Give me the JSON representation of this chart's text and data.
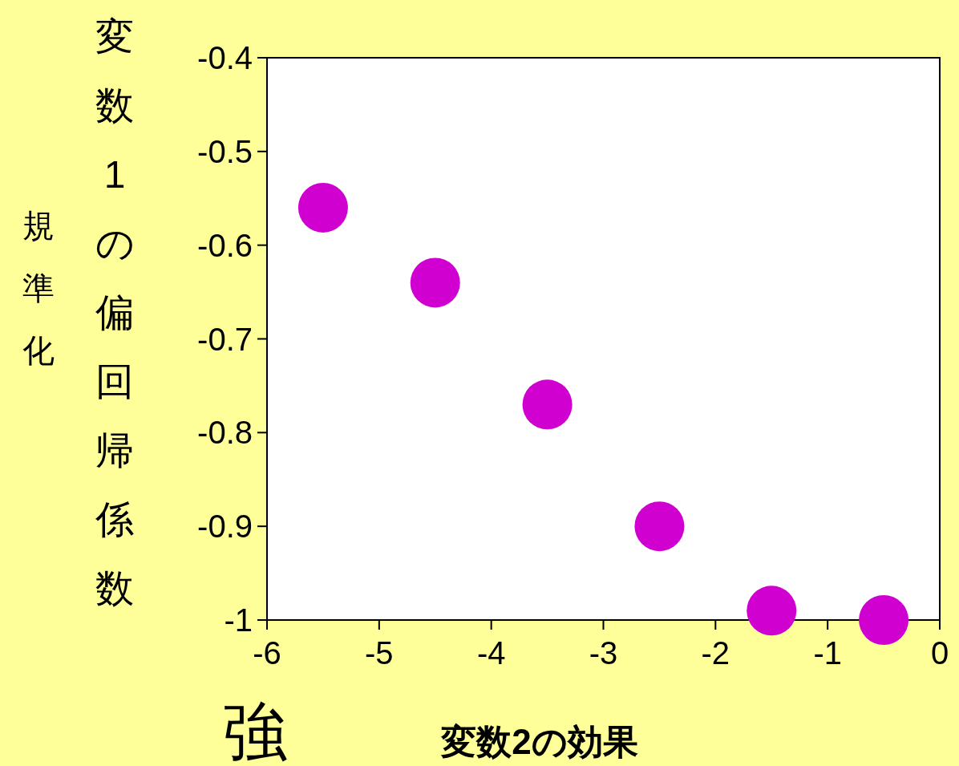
{
  "chart_data": {
    "type": "scatter",
    "xlabel": "変数2の効果",
    "ylabel": "変数1の偏回帰係数",
    "annotations": [
      "規準化",
      "強"
    ],
    "x": [
      -5.5,
      -4.5,
      -3.5,
      -2.5,
      -1.5,
      -0.5
    ],
    "values": [
      -0.56,
      -0.64,
      -0.77,
      -0.9,
      -0.99,
      -1.0
    ],
    "color": "#d000d0",
    "marker": "circle",
    "xlim": [
      -6,
      0
    ],
    "ylim": [
      -1,
      -0.4
    ],
    "xticks": [
      -6,
      -5,
      -4,
      -3,
      -2,
      -1,
      0
    ],
    "yticks": [
      -1,
      -0.9,
      -0.8,
      -0.7,
      -0.6,
      -0.5,
      -0.4
    ]
  }
}
